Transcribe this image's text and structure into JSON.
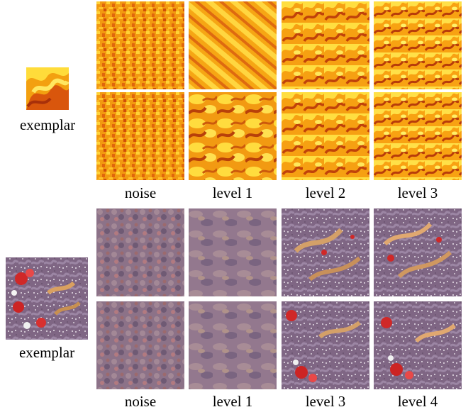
{
  "figure": {
    "top_panel": {
      "exemplar_label": "exemplar",
      "column_labels": [
        "noise",
        "level 1",
        "level 2",
        "level 3"
      ],
      "colors": {
        "base": "#f5a20c",
        "light": "#ffe04a",
        "dark": "#c2400a"
      }
    },
    "bottom_panel": {
      "exemplar_label": "exemplar",
      "column_labels": [
        "noise",
        "level 1",
        "level 3",
        "level 4"
      ],
      "colors": {
        "base": "#8a7088",
        "light": "#c9a88a",
        "dark": "#5a3f5a",
        "accent": "#cc2a2a"
      }
    }
  }
}
